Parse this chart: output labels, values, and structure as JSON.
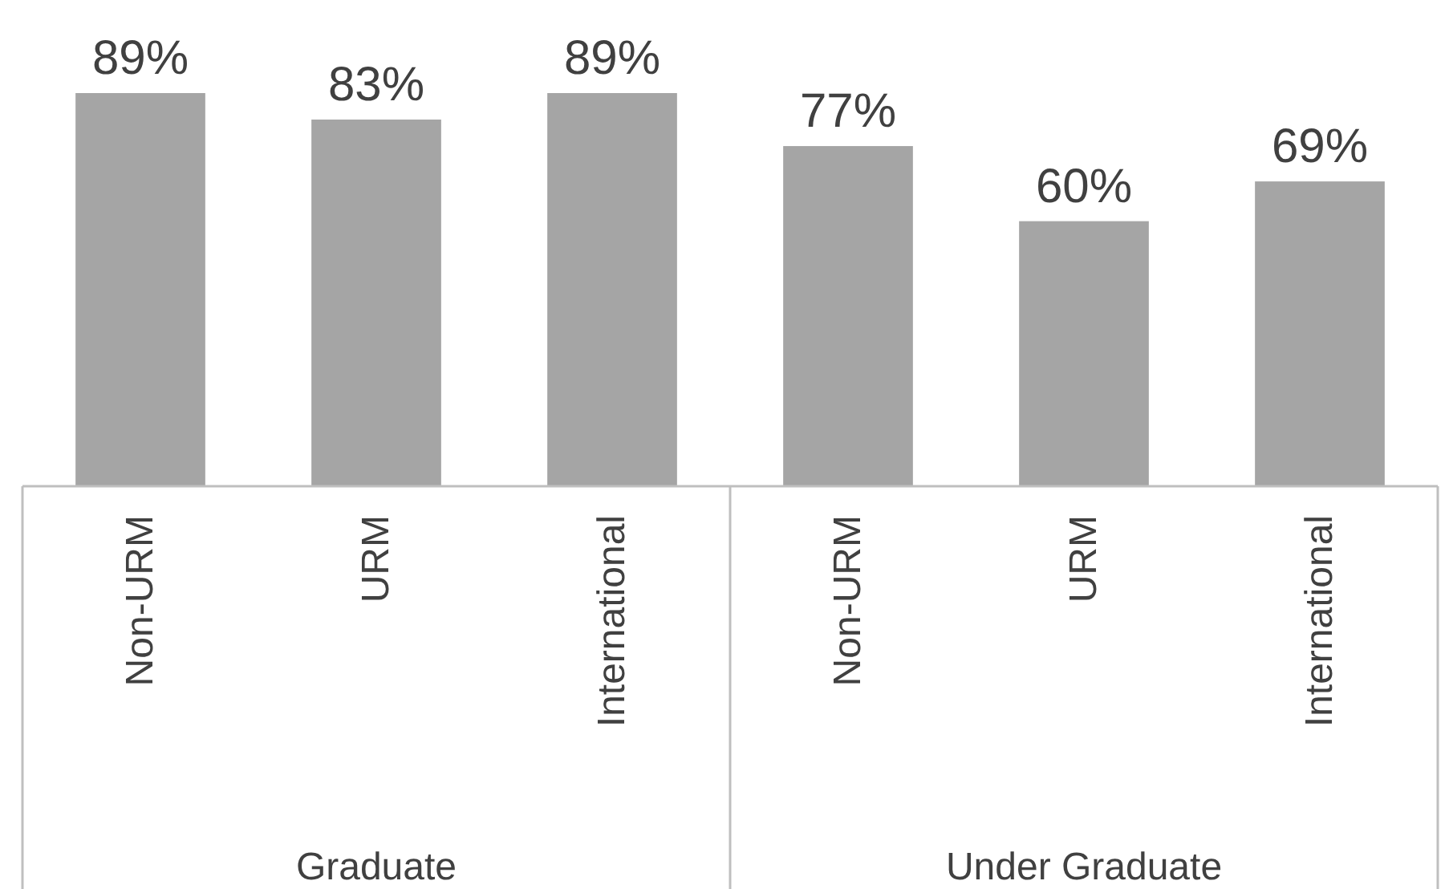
{
  "chart_data": {
    "type": "bar",
    "categories": [
      "Non-URM",
      "URM",
      "International",
      "Non-URM",
      "URM",
      "International"
    ],
    "values": [
      89,
      83,
      89,
      77,
      60,
      69
    ],
    "value_labels": [
      "89%",
      "83%",
      "89%",
      "77%",
      "60%",
      "69%"
    ],
    "color": "#a5a5a5",
    "annotations": [
      "Graduate",
      "Under Graduate"
    ]
  }
}
